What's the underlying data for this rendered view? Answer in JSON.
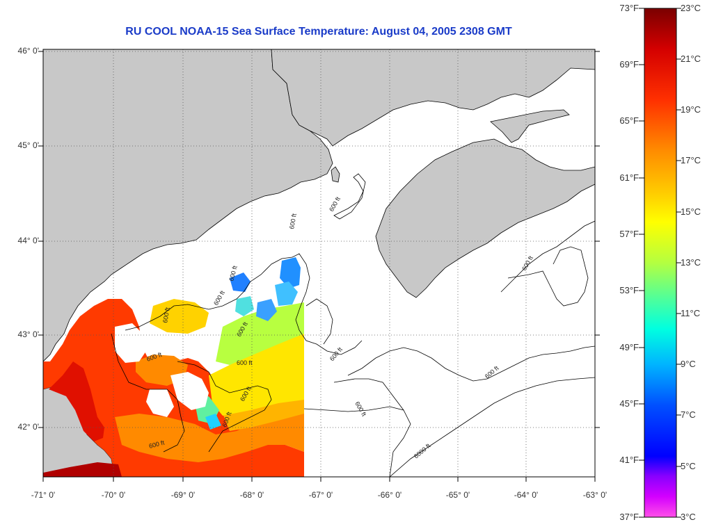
{
  "title": "RU COOL  NOAA-15  Sea Surface Temperature:  August 04, 2005 2308 GMT",
  "map": {
    "lat_labels": [
      "46° 0'",
      "45° 0'",
      "44° 0'",
      "43° 0'",
      "42° 0'"
    ],
    "lon_labels": [
      "-71° 0'",
      "-70° 0'",
      "-69° 0'",
      "-68° 0'",
      "-67° 0'",
      "-66° 0'",
      "-65° 0'",
      "-64° 0'",
      "-63° 0'"
    ],
    "contour_labels": [
      "600 ft",
      "600 ft",
      "600 ft",
      "600 ft",
      "600 ft",
      "600 ft",
      "600 ft",
      "600 ft",
      "600 ft",
      "600 ft",
      "600 ft",
      "6000 ft",
      "600 ft",
      "600 ft",
      "600 ft",
      "600 ft"
    ],
    "land_color": "#c8c8c8",
    "water_color": "#ffffff"
  },
  "colorbar": {
    "fahrenheit": [
      "73°F",
      "69°F",
      "65°F",
      "61°F",
      "57°F",
      "53°F",
      "49°F",
      "45°F",
      "41°F",
      "37°F"
    ],
    "celsius": [
      "23°C",
      "21°C",
      "19°C",
      "17°C",
      "15°C",
      "13°C",
      "11°C",
      "9°C",
      "7°C",
      "5°C",
      "3°C"
    ],
    "gradient_colors": [
      "#7a0000",
      "#d40000",
      "#ff2a00",
      "#ff7a00",
      "#ffc800",
      "#ffff00",
      "#c8ff30",
      "#60ff90",
      "#00ffd8",
      "#00c8ff",
      "#0060ff",
      "#0000ff",
      "#8000ff",
      "#c800ff",
      "#ff30ff",
      "#ff60e0"
    ]
  }
}
